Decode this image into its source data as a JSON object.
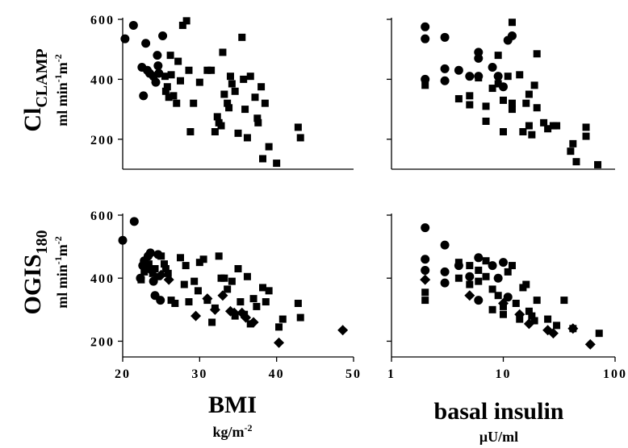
{
  "figure": {
    "y_labels": {
      "top": {
        "main": "Cl",
        "sub": "CLAMP",
        "units": "ml min",
        "units_sup1": "-1",
        "units_mid": "m",
        "units_sup2": "-2"
      },
      "bottom": {
        "main": "OGIS",
        "sub": "180",
        "units": "ml min",
        "units_sup1": "-1",
        "units_mid": "m",
        "units_sup2": "-2"
      }
    },
    "x_labels": {
      "left": {
        "main": "BMI",
        "units": "kg/m",
        "units_sup": "-2"
      },
      "right": {
        "main": "basal insulin",
        "units": "μU/ml"
      }
    }
  },
  "chart_data": [
    {
      "id": "clamp-vs-bmi",
      "type": "scatter",
      "xscale": "linear",
      "xlim": [
        20,
        50
      ],
      "yscale": "linear",
      "ylim": [
        100,
        600
      ],
      "xticks": [],
      "yticks": [
        200,
        400,
        600
      ],
      "ytick_labels": [
        "200",
        "400",
        "600"
      ],
      "series": [
        {
          "marker": "circle",
          "points": [
            [
              20.3,
              535
            ],
            [
              21.4,
              580
            ],
            [
              22.5,
              440
            ],
            [
              22.7,
              345
            ],
            [
              23.0,
              520
            ],
            [
              23.2,
              430
            ],
            [
              23.5,
              420
            ],
            [
              24.0,
              410
            ],
            [
              24.3,
              390
            ],
            [
              24.5,
              480
            ],
            [
              24.6,
              445
            ],
            [
              24.7,
              420
            ],
            [
              25.2,
              545
            ]
          ]
        },
        {
          "marker": "square",
          "points": [
            [
              25.5,
              410
            ],
            [
              25.6,
              360
            ],
            [
              25.8,
              375
            ],
            [
              26.0,
              340
            ],
            [
              26.2,
              480
            ],
            [
              26.3,
              415
            ],
            [
              26.6,
              345
            ],
            [
              27.0,
              320
            ],
            [
              27.2,
              460
            ],
            [
              27.5,
              395
            ],
            [
              27.8,
              580
            ],
            [
              28.3,
              595
            ],
            [
              28.6,
              430
            ],
            [
              28.8,
              225
            ],
            [
              29.2,
              320
            ],
            [
              30.0,
              390
            ],
            [
              31.0,
              430
            ],
            [
              31.5,
              430
            ],
            [
              32.0,
              225
            ],
            [
              32.3,
              275
            ],
            [
              32.5,
              255
            ],
            [
              32.8,
              245
            ],
            [
              33.0,
              490
            ],
            [
              33.2,
              350
            ],
            [
              33.6,
              320
            ],
            [
              33.8,
              305
            ],
            [
              34.0,
              410
            ],
            [
              34.2,
              385
            ],
            [
              34.6,
              360
            ],
            [
              35.0,
              220
            ],
            [
              35.5,
              540
            ],
            [
              35.7,
              400
            ],
            [
              35.9,
              300
            ],
            [
              36.2,
              205
            ],
            [
              36.6,
              410
            ],
            [
              37.2,
              340
            ],
            [
              37.5,
              270
            ],
            [
              37.6,
              255
            ],
            [
              38.0,
              375
            ],
            [
              38.2,
              135
            ],
            [
              38.5,
              320
            ],
            [
              39.0,
              175
            ],
            [
              40.0,
              120
            ],
            [
              42.8,
              240
            ],
            [
              43.1,
              205
            ]
          ]
        }
      ]
    },
    {
      "id": "clamp-vs-insulin",
      "type": "scatter",
      "xscale": "log",
      "xlim": [
        1,
        100
      ],
      "yscale": "linear",
      "ylim": [
        100,
        600
      ],
      "xticks": [],
      "yticks": [
        200,
        400,
        600
      ],
      "ytick_labels": [],
      "series": [
        {
          "marker": "circle",
          "points": [
            [
              2,
              575
            ],
            [
              2,
              535
            ],
            [
              2,
              400
            ],
            [
              3,
              540
            ],
            [
              3,
              435
            ],
            [
              3,
              395
            ],
            [
              4,
              430
            ],
            [
              5,
              410
            ],
            [
              6,
              490
            ],
            [
              6,
              470
            ],
            [
              6,
              410
            ],
            [
              8,
              440
            ],
            [
              9,
              410
            ],
            [
              10,
              375
            ],
            [
              11,
              530
            ],
            [
              12,
              545
            ]
          ]
        },
        {
          "marker": "square",
          "points": [
            [
              2,
              380
            ],
            [
              4,
              335
            ],
            [
              5,
              315
            ],
            [
              5,
              345
            ],
            [
              6,
              405
            ],
            [
              7,
              260
            ],
            [
              7,
              310
            ],
            [
              8,
              370
            ],
            [
              9,
              480
            ],
            [
              9,
              385
            ],
            [
              10,
              330
            ],
            [
              10,
              225
            ],
            [
              11,
              410
            ],
            [
              12,
              320
            ],
            [
              12,
              300
            ],
            [
              12,
              590
            ],
            [
              14,
              415
            ],
            [
              15,
              225
            ],
            [
              16,
              320
            ],
            [
              17,
              350
            ],
            [
              17,
              245
            ],
            [
              18,
              215
            ],
            [
              19,
              380
            ],
            [
              20,
              305
            ],
            [
              20,
              485
            ],
            [
              23,
              255
            ],
            [
              25,
              235
            ],
            [
              28,
              245
            ],
            [
              30,
              245
            ],
            [
              40,
              160
            ],
            [
              42,
              185
            ],
            [
              45,
              125
            ],
            [
              55,
              240
            ],
            [
              55,
              210
            ],
            [
              70,
              115
            ]
          ]
        }
      ]
    },
    {
      "id": "ogis-vs-bmi",
      "type": "scatter",
      "xscale": "linear",
      "xlim": [
        20,
        50
      ],
      "yscale": "linear",
      "ylim": [
        150,
        600
      ],
      "xticks": [
        20,
        30,
        40,
        50
      ],
      "xtick_labels": [
        "20",
        "30",
        "40",
        "50"
      ],
      "yticks": [
        200,
        400,
        600
      ],
      "ytick_labels": [
        "200",
        "400",
        "600"
      ],
      "series": [
        {
          "marker": "circle",
          "points": [
            [
              20.0,
              520
            ],
            [
              21.5,
              580
            ],
            [
              22.3,
              400
            ],
            [
              22.6,
              440
            ],
            [
              22.8,
              455
            ],
            [
              23.1,
              430
            ],
            [
              23.3,
              470
            ],
            [
              23.6,
              480
            ],
            [
              23.8,
              425
            ],
            [
              24.0,
              390
            ],
            [
              24.2,
              345
            ],
            [
              24.6,
              475
            ],
            [
              24.9,
              330
            ]
          ]
        },
        {
          "marker": "square",
          "points": [
            [
              22.4,
              395
            ],
            [
              22.8,
              420
            ],
            [
              23.4,
              445
            ],
            [
              23.9,
              415
            ],
            [
              24.2,
              430
            ],
            [
              24.5,
              405
            ],
            [
              25.0,
              470
            ],
            [
              25.4,
              445
            ],
            [
              25.6,
              430
            ],
            [
              25.9,
              415
            ],
            [
              26.3,
              330
            ],
            [
              26.8,
              320
            ],
            [
              27.5,
              465
            ],
            [
              28.0,
              380
            ],
            [
              28.2,
              440
            ],
            [
              28.6,
              325
            ],
            [
              29.3,
              390
            ],
            [
              29.8,
              360
            ],
            [
              30.0,
              450
            ],
            [
              30.5,
              460
            ],
            [
              31.0,
              330
            ],
            [
              31.6,
              260
            ],
            [
              32.0,
              305
            ],
            [
              32.5,
              470
            ],
            [
              32.8,
              400
            ],
            [
              33.2,
              400
            ],
            [
              33.6,
              365
            ],
            [
              34.2,
              390
            ],
            [
              34.6,
              280
            ],
            [
              35.0,
              430
            ],
            [
              35.3,
              325
            ],
            [
              35.8,
              285
            ],
            [
              36.2,
              405
            ],
            [
              36.6,
              255
            ],
            [
              37.0,
              335
            ],
            [
              37.4,
              310
            ],
            [
              38.2,
              370
            ],
            [
              38.6,
              325
            ],
            [
              39.0,
              360
            ],
            [
              40.3,
              245
            ],
            [
              40.8,
              270
            ],
            [
              42.8,
              320
            ],
            [
              43.1,
              275
            ]
          ]
        },
        {
          "marker": "diamond",
          "points": [
            [
              25.0,
              410
            ],
            [
              26.0,
              395
            ],
            [
              29.5,
              280
            ],
            [
              31.0,
              335
            ],
            [
              32.0,
              300
            ],
            [
              33.0,
              345
            ],
            [
              34.0,
              295
            ],
            [
              34.5,
              290
            ],
            [
              35.5,
              290
            ],
            [
              36.0,
              275
            ],
            [
              37.0,
              260
            ],
            [
              40.3,
              195
            ],
            [
              48.6,
              235
            ]
          ]
        }
      ]
    },
    {
      "id": "ogis-vs-insulin",
      "type": "scatter",
      "xscale": "log",
      "xlim": [
        1,
        100
      ],
      "yscale": "linear",
      "ylim": [
        150,
        600
      ],
      "xticks": [
        1,
        10,
        100
      ],
      "xtick_labels": [
        "1",
        "10",
        "100"
      ],
      "yticks": [
        200,
        400,
        600
      ],
      "ytick_labels": [],
      "series": [
        {
          "marker": "circle",
          "points": [
            [
              2,
              560
            ],
            [
              2,
              460
            ],
            [
              2,
              425
            ],
            [
              3,
              505
            ],
            [
              3,
              420
            ],
            [
              3,
              385
            ],
            [
              4,
              440
            ],
            [
              5,
              405
            ],
            [
              6,
              465
            ],
            [
              6,
              330
            ],
            [
              8,
              440
            ],
            [
              9,
              400
            ],
            [
              10,
              450
            ],
            [
              11,
              340
            ]
          ]
        },
        {
          "marker": "square",
          "points": [
            [
              2,
              355
            ],
            [
              2,
              330
            ],
            [
              4,
              450
            ],
            [
              4,
              400
            ],
            [
              5,
              440
            ],
            [
              5,
              380
            ],
            [
              6,
              425
            ],
            [
              6,
              390
            ],
            [
              7,
              455
            ],
            [
              7,
              405
            ],
            [
              8,
              365
            ],
            [
              8,
              300
            ],
            [
              9,
              345
            ],
            [
              10,
              310
            ],
            [
              10,
              285
            ],
            [
              11,
              420
            ],
            [
              12,
              440
            ],
            [
              13,
              320
            ],
            [
              14,
              270
            ],
            [
              15,
              370
            ],
            [
              16,
              380
            ],
            [
              17,
              295
            ],
            [
              18,
              280
            ],
            [
              19,
              265
            ],
            [
              20,
              330
            ],
            [
              25,
              270
            ],
            [
              30,
              250
            ],
            [
              35,
              330
            ],
            [
              42,
              240
            ],
            [
              72,
              225
            ]
          ]
        },
        {
          "marker": "diamond",
          "points": [
            [
              2,
              395
            ],
            [
              5,
              345
            ],
            [
              10,
              320
            ],
            [
              14,
              285
            ],
            [
              17,
              255
            ],
            [
              25,
              235
            ],
            [
              28,
              225
            ],
            [
              42,
              240
            ],
            [
              60,
              190
            ]
          ]
        }
      ]
    }
  ]
}
